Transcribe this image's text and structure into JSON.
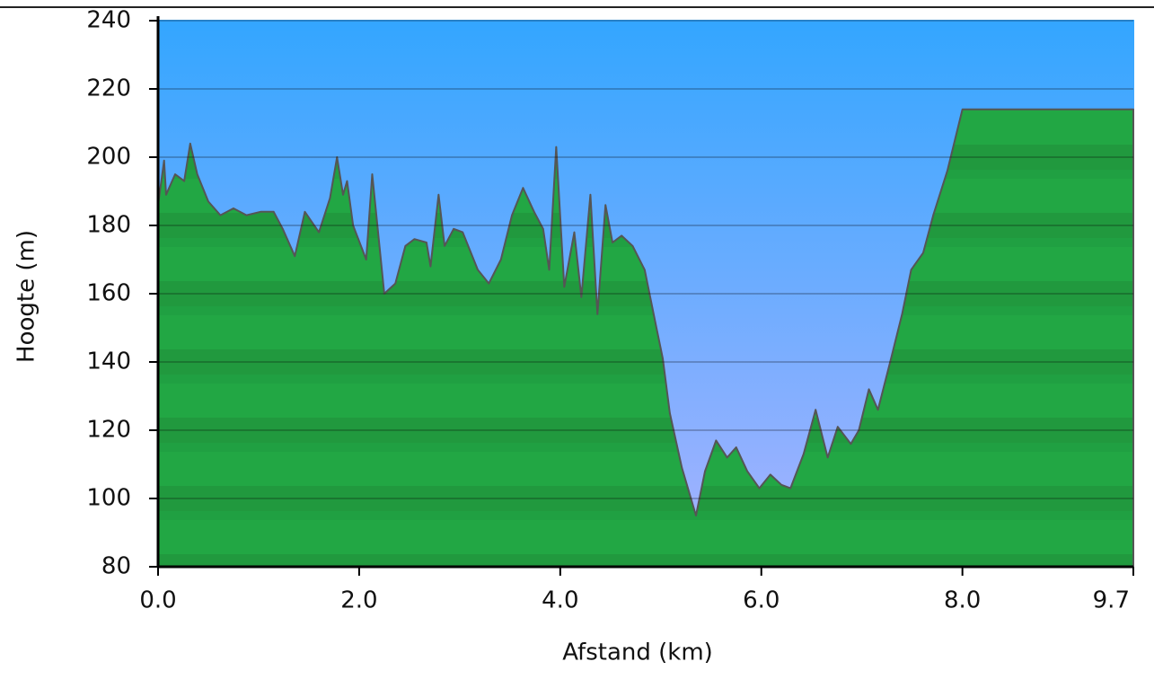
{
  "chart_data": {
    "type": "area",
    "xlabel": "Afstand (km)",
    "ylabel": "Hoogte (m)",
    "xlim": [
      0,
      9.7
    ],
    "ylim": [
      80,
      240
    ],
    "xticks": [
      {
        "value": 0,
        "label": "0.0"
      },
      {
        "value": 2,
        "label": "2.0"
      },
      {
        "value": 4,
        "label": "4.0"
      },
      {
        "value": 6,
        "label": "6.0"
      },
      {
        "value": 8,
        "label": "8.0"
      },
      9.7
    ],
    "yticks": [
      80,
      100,
      120,
      140,
      160,
      180,
      200,
      220,
      240
    ],
    "grid": true,
    "color": "#22a744",
    "x": [
      0,
      0.06,
      0.08,
      0.17,
      0.26,
      0.32,
      0.39,
      0.5,
      0.62,
      0.75,
      0.88,
      1.02,
      1.15,
      1.24,
      1.36,
      1.46,
      1.6,
      1.71,
      1.78,
      1.84,
      1.88,
      1.94,
      2.07,
      2.13,
      2.25,
      2.36,
      2.46,
      2.55,
      2.67,
      2.71,
      2.79,
      2.85,
      2.94,
      3.03,
      3.18,
      3.29,
      3.41,
      3.52,
      3.63,
      3.74,
      3.83,
      3.89,
      3.96,
      4.04,
      4.14,
      4.21,
      4.3,
      4.37,
      4.45,
      4.52,
      4.61,
      4.72,
      4.84,
      4.95,
      5.02,
      5.09,
      5.21,
      5.35,
      5.44,
      5.55,
      5.66,
      5.75,
      5.86,
      5.98,
      6.09,
      6.2,
      6.29,
      6.42,
      6.54,
      6.66,
      6.76,
      6.89,
      6.97,
      7.07,
      7.16,
      7.29,
      7.4,
      7.49,
      7.61,
      7.71,
      7.85,
      8.0,
      9.7
    ],
    "values": [
      186,
      199,
      189,
      195,
      193,
      204,
      195,
      187,
      183,
      185,
      183,
      184,
      184,
      179,
      171,
      184,
      178,
      188,
      200,
      189,
      193,
      180,
      170,
      195,
      160,
      163,
      174,
      176,
      175,
      168,
      189,
      174,
      179,
      178,
      167,
      163,
      170,
      183,
      191,
      184,
      179,
      167,
      203,
      162,
      178,
      159,
      189,
      154,
      186,
      175,
      177,
      174,
      167,
      151,
      141,
      125,
      109,
      95,
      108,
      117,
      112,
      115,
      108,
      103,
      107,
      104,
      103,
      113,
      126,
      112,
      121,
      116,
      120,
      132,
      126,
      141,
      154,
      167,
      172,
      183,
      196,
      214,
      214
    ]
  }
}
